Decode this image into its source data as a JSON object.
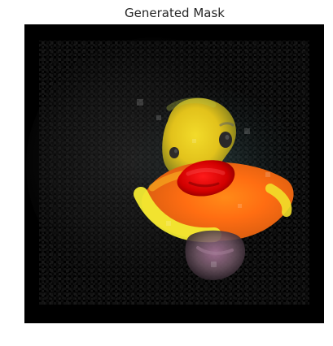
{
  "figure": {
    "title": "Generated Mask"
  }
}
